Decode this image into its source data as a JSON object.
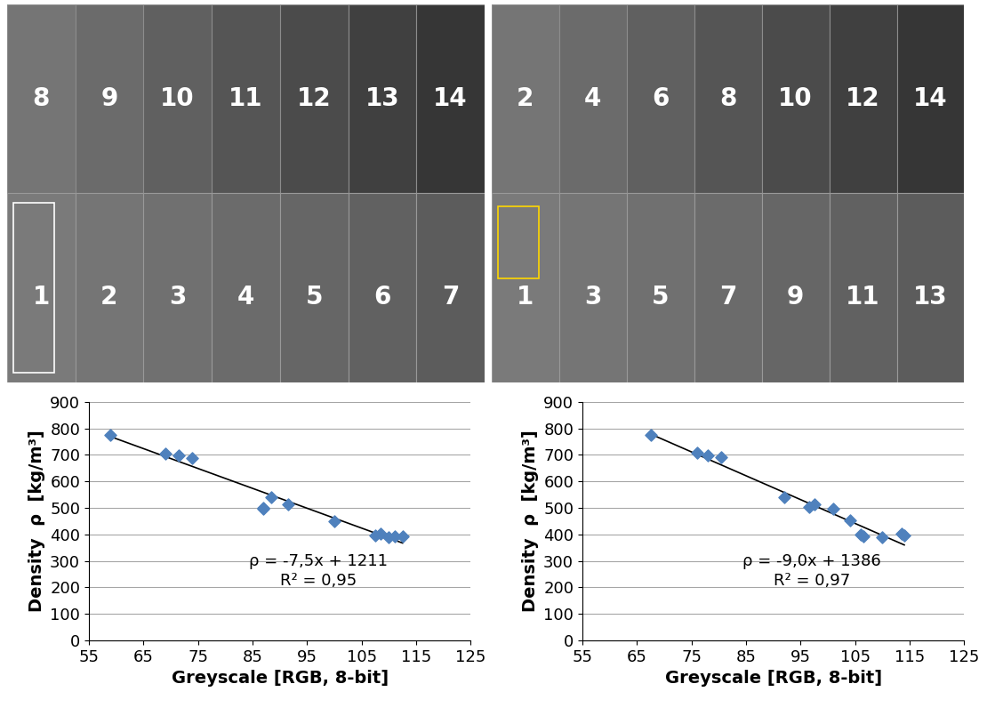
{
  "images": [
    {
      "top_row": [
        "8",
        "9",
        "10",
        "11",
        "12",
        "13",
        "14"
      ],
      "bottom_row": [
        "1",
        "2",
        "3",
        "4",
        "5",
        "6",
        "7"
      ]
    },
    {
      "top_row": [
        "2",
        "4",
        "6",
        "8",
        "10",
        "12",
        "14"
      ],
      "bottom_row": [
        "1",
        "3",
        "5",
        "7",
        "9",
        "11",
        "13"
      ]
    }
  ],
  "chart_data": [
    {
      "type": "scatter",
      "x": [
        59,
        69,
        71.5,
        74,
        87,
        87,
        88.5,
        91.5,
        100,
        107.5,
        108.5,
        110,
        111,
        112.5
      ],
      "values": [
        775,
        705,
        697,
        688,
        500,
        497,
        540,
        512,
        450,
        397,
        403,
        390,
        393,
        393
      ],
      "trendline": {
        "slope": -7.5,
        "intercept": 1211
      },
      "annotations": [
        "ρ = -7,5x + 1211",
        "R² = 0,95"
      ],
      "x_label": "Greyscale [RGB, 8-bit]",
      "y_label": "Density  ρ  [kg/m³]",
      "xlim": [
        55,
        125
      ],
      "xticks": [
        55,
        65,
        75,
        85,
        95,
        105,
        115,
        125
      ],
      "ylim": [
        0,
        900
      ],
      "yticks": [
        0,
        100,
        200,
        300,
        400,
        500,
        600,
        700,
        800,
        900
      ],
      "grid": true,
      "color": "#4f81bd",
      "marker": "diamond"
    },
    {
      "type": "scatter",
      "x": [
        67.5,
        76,
        78,
        80.5,
        92,
        96.5,
        97.5,
        101,
        104,
        106,
        106.5,
        110,
        113.5,
        114
      ],
      "values": [
        775,
        707,
        697,
        690,
        540,
        502,
        512,
        497,
        452,
        398,
        393,
        388,
        403,
        397
      ],
      "trendline": {
        "slope": -9.0,
        "intercept": 1386
      },
      "annotations": [
        "ρ = -9,0x + 1386",
        "R² = 0,97"
      ],
      "x_label": "Greyscale [RGB, 8-bit]",
      "y_label": "Density  ρ  [kg/m³]",
      "xlim": [
        55,
        125
      ],
      "xticks": [
        55,
        65,
        75,
        85,
        95,
        105,
        115,
        125
      ],
      "ylim": [
        0,
        900
      ],
      "yticks": [
        0,
        100,
        200,
        300,
        400,
        500,
        600,
        700,
        800,
        900
      ],
      "grid": true,
      "color": "#4f81bd",
      "marker": "diamond"
    }
  ]
}
